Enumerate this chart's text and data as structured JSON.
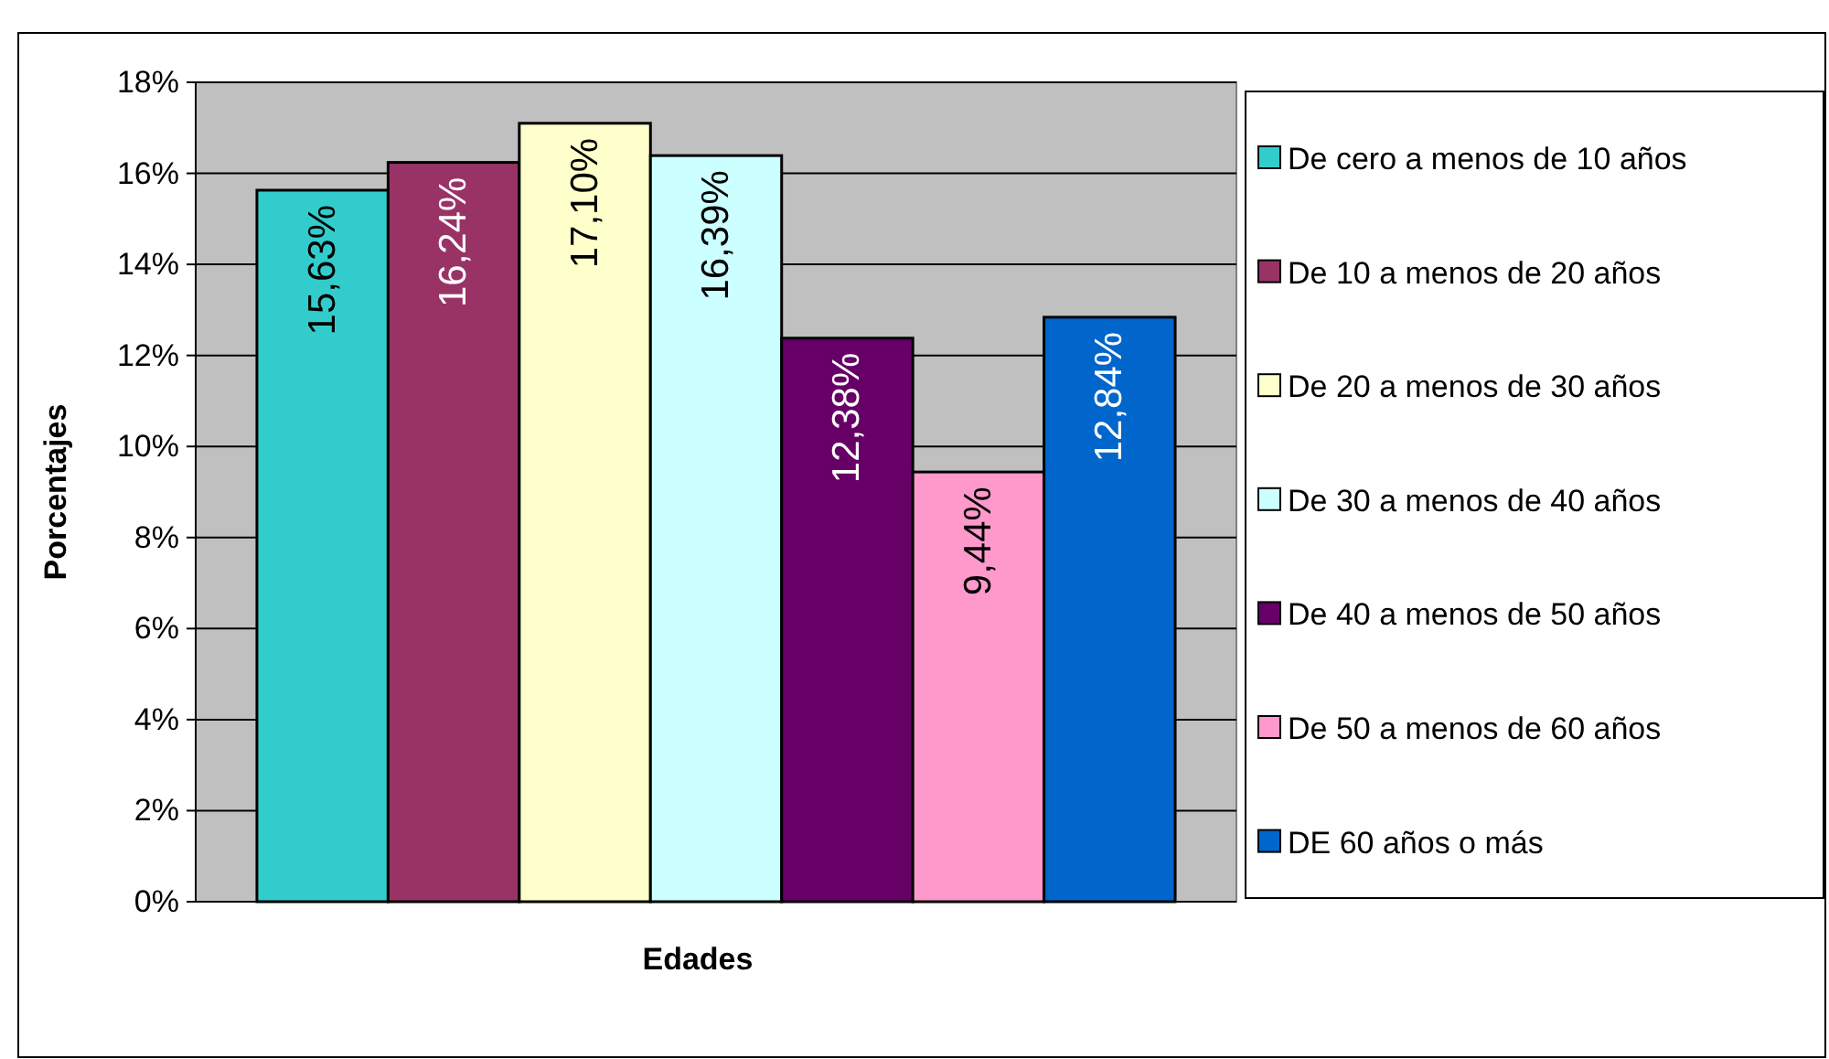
{
  "chart_data": {
    "type": "bar",
    "xlabel": "Edades",
    "ylabel": "Porcentajes",
    "categories": [
      null
    ],
    "ylim": [
      0,
      18
    ],
    "yticks": [
      {
        "value": 0,
        "label": "0%"
      },
      {
        "value": 2,
        "label": "2%"
      },
      {
        "value": 4,
        "label": "4%"
      },
      {
        "value": 6,
        "label": "6%"
      },
      {
        "value": 8,
        "label": "8%"
      },
      {
        "value": 10,
        "label": "10%"
      },
      {
        "value": 12,
        "label": "12%"
      },
      {
        "value": 14,
        "label": "14%"
      },
      {
        "value": 16,
        "label": "16%"
      },
      {
        "value": 18,
        "label": "18%"
      }
    ],
    "grid": "y",
    "legend": "right",
    "series": [
      {
        "name": "De cero a menos de 10 años",
        "color": "#33cccc",
        "values": [
          15.63
        ],
        "value_labels": [
          "15,63%"
        ]
      },
      {
        "name": "De 10 a menos de 20 años",
        "color": "#993366",
        "values": [
          16.24
        ],
        "value_labels": [
          "16,24%"
        ]
      },
      {
        "name": "De 20 a menos de 30 años",
        "color": "#ffffcc",
        "values": [
          17.1
        ],
        "value_labels": [
          "17,10%"
        ]
      },
      {
        "name": "De 30 a menos de 40 años",
        "color": "#ccffff",
        "values": [
          16.39
        ],
        "value_labels": [
          "16,39%"
        ]
      },
      {
        "name": "De 40 a menos de 50 años",
        "color": "#660066",
        "values": [
          12.38
        ],
        "value_labels": [
          "12,38%"
        ]
      },
      {
        "name": "De 50 a menos de 60 años",
        "color": "#ff99cc",
        "values": [
          9.44
        ],
        "value_labels": [
          "9,44%"
        ]
      },
      {
        "name": "DE 60 años o más",
        "color": "#0066cc",
        "values": [
          12.84
        ],
        "value_labels": [
          "12,84%"
        ]
      }
    ]
  }
}
